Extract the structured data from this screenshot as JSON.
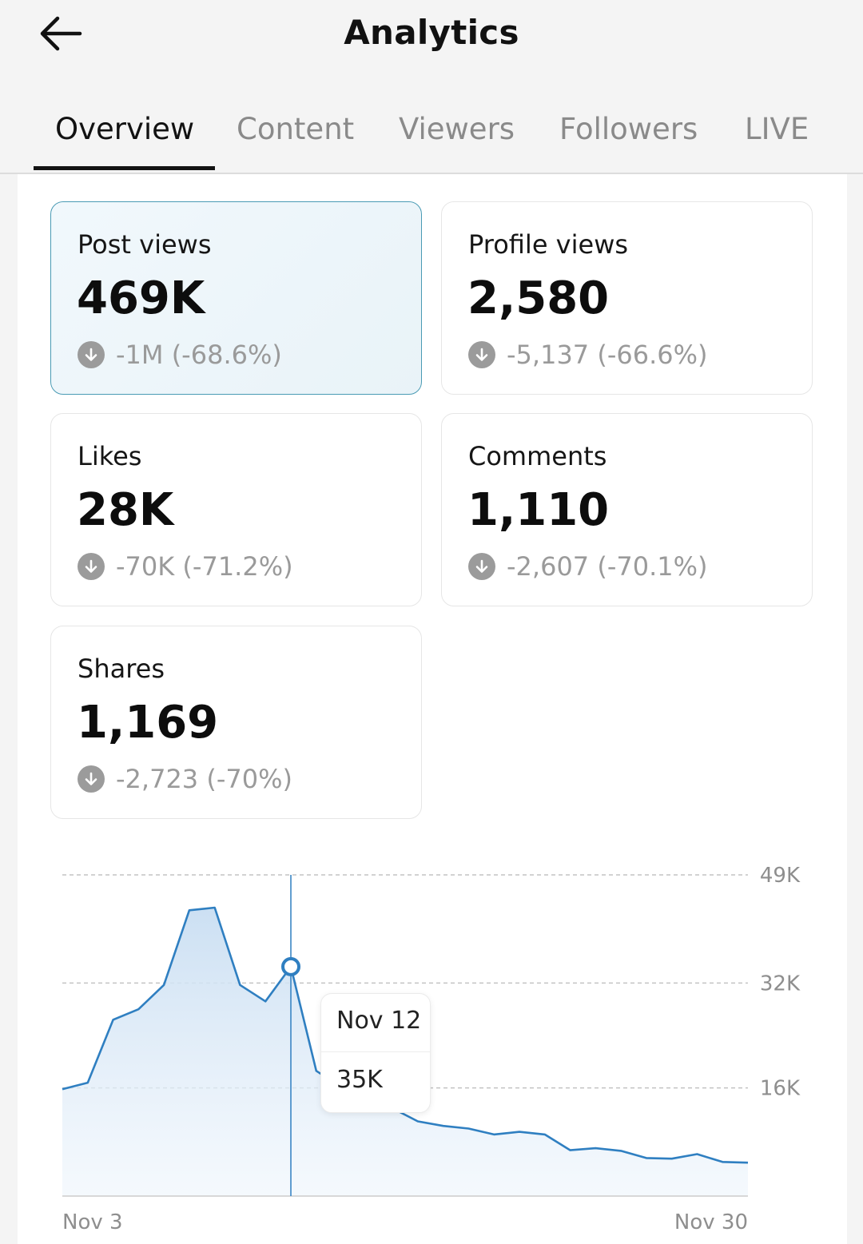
{
  "header": {
    "title": "Analytics",
    "back_icon": "arrow-left-icon"
  },
  "tabs": [
    {
      "label": "Overview",
      "active": true
    },
    {
      "label": "Content",
      "active": false
    },
    {
      "label": "Viewers",
      "active": false
    },
    {
      "label": "Followers",
      "active": false
    },
    {
      "label": "LIVE",
      "active": false
    }
  ],
  "metrics": [
    {
      "label": "Post views",
      "value": "469K",
      "delta": "-1M (-68.6%)",
      "selected": true
    },
    {
      "label": "Profile views",
      "value": "2,580",
      "delta": "-5,137 (-66.6%)",
      "selected": false
    },
    {
      "label": "Likes",
      "value": "28K",
      "delta": "-70K (-71.2%)",
      "selected": false
    },
    {
      "label": "Comments",
      "value": "1,110",
      "delta": "-2,607 (-70.1%)",
      "selected": false
    },
    {
      "label": "Shares",
      "value": "1,169",
      "delta": "-2,723 (-70%)",
      "selected": false
    }
  ],
  "colors": {
    "accent": "#2f7fc1",
    "selected_border": "#4a9bb4",
    "delta_gray": "#9a9a9a"
  },
  "chart_data": {
    "type": "area",
    "x_start_label": "Nov 3",
    "x_end_label": "Nov 30",
    "y_ticks": [
      "49K",
      "32K",
      "16K"
    ],
    "ylim": [
      0,
      49000
    ],
    "grid": true,
    "x": [
      "Nov 3",
      "Nov 4",
      "Nov 5",
      "Nov 6",
      "Nov 7",
      "Nov 8",
      "Nov 9",
      "Nov 10",
      "Nov 11",
      "Nov 12",
      "Nov 13",
      "Nov 14",
      "Nov 15",
      "Nov 16",
      "Nov 17",
      "Nov 18",
      "Nov 19",
      "Nov 20",
      "Nov 21",
      "Nov 22",
      "Nov 23",
      "Nov 24",
      "Nov 25",
      "Nov 26",
      "Nov 27",
      "Nov 28",
      "Nov 29",
      "Nov 30"
    ],
    "series": [
      {
        "values": [
          16300,
          17300,
          26900,
          28500,
          32200,
          43600,
          44000,
          32200,
          29700,
          35000,
          19100,
          16600,
          15000,
          13400,
          11400,
          10700,
          10300,
          9400,
          9800,
          9400,
          7000,
          7300,
          6900,
          5800,
          5700,
          6400,
          5200,
          5100
        ]
      }
    ],
    "tooltip": {
      "date": "Nov 12",
      "value": "35K"
    }
  }
}
